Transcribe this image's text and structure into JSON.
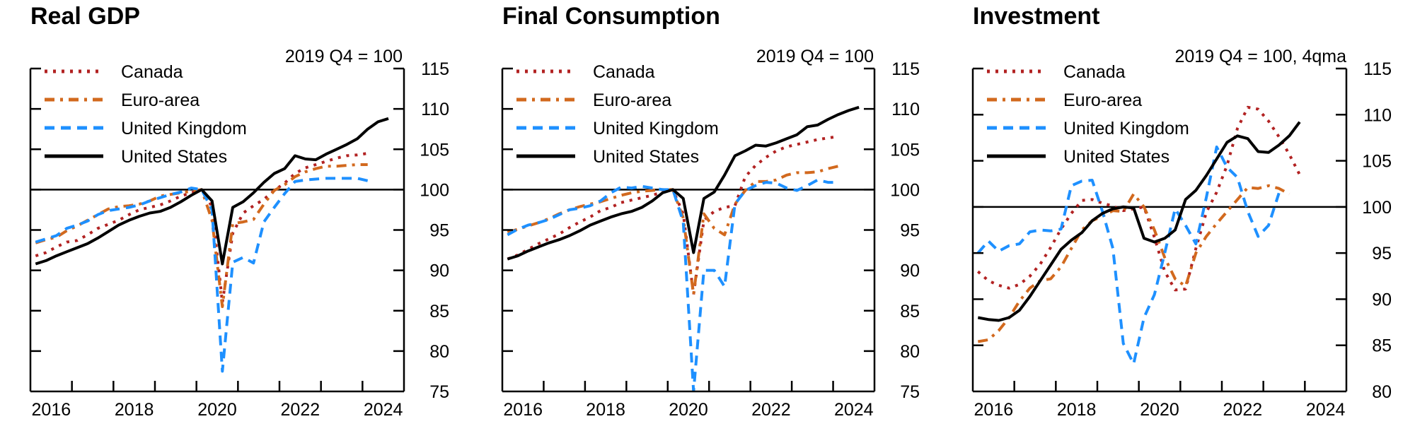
{
  "colors": {
    "Canada": "#b22222",
    "Euro-area": "#d2691e",
    "United Kingdom": "#1e90ff",
    "United States": "#000000"
  },
  "legend": [
    {
      "name": "Canada",
      "style": "dotted"
    },
    {
      "name": "Euro-area",
      "style": "dashdot"
    },
    {
      "name": "United Kingdom",
      "style": "dashed"
    },
    {
      "name": "United States",
      "style": "solid"
    }
  ],
  "chart_data": [
    {
      "type": "line",
      "title": "Real GDP",
      "unit_label": "2019 Q4 = 100",
      "xlabel": "",
      "ylabel": "",
      "x_tick_labels": [
        "2016",
        "2018",
        "2020",
        "2022",
        "2024"
      ],
      "xlim": [
        2016,
        2025
      ],
      "ylim": [
        75,
        115
      ],
      "y_ticks": [
        75,
        80,
        85,
        90,
        95,
        100,
        105,
        110,
        115
      ],
      "reference_line": 100,
      "legend_position": "top-left",
      "x_start": "2016 Q1",
      "frequency": "quarterly",
      "series": [
        {
          "name": "Canada",
          "values": [
            91.8,
            92.2,
            92.9,
            93.5,
            93.7,
            94.4,
            95.2,
            95.7,
            96.2,
            96.9,
            97.5,
            97.8,
            98.1,
            98.6,
            99.2,
            99.6,
            100.0,
            97.9,
            86.0,
            94.6,
            97.1,
            98.0,
            98.8,
            99.9,
            100.8,
            102.0,
            102.7,
            103.1,
            103.5,
            103.9,
            104.2,
            104.3,
            104.5
          ]
        },
        {
          "name": "Euro-area",
          "values": [
            93.4,
            93.8,
            94.1,
            94.9,
            95.5,
            96.2,
            96.9,
            97.6,
            97.9,
            98.0,
            98.2,
            98.6,
            99.2,
            99.4,
            99.6,
            99.8,
            100.0,
            96.2,
            85.5,
            95.8,
            96.0,
            96.3,
            98.2,
            99.9,
            100.6,
            101.6,
            102.2,
            102.6,
            102.9,
            102.9,
            103.0,
            103.1,
            103.1
          ]
        },
        {
          "name": "United Kingdom",
          "values": [
            93.5,
            93.9,
            94.3,
            95.2,
            95.6,
            96.1,
            96.9,
            97.4,
            97.6,
            97.8,
            98.1,
            98.6,
            99.0,
            99.4,
            99.7,
            100.2,
            100.0,
            97.5,
            77.5,
            91.0,
            91.6,
            90.9,
            96.0,
            97.8,
            99.5,
            101.0,
            101.2,
            101.3,
            101.4,
            101.4,
            101.4,
            101.4,
            101.1
          ]
        },
        {
          "name": "United States",
          "values": [
            90.8,
            91.2,
            91.8,
            92.3,
            92.8,
            93.3,
            94.0,
            94.8,
            95.6,
            96.2,
            96.7,
            97.1,
            97.3,
            97.8,
            98.5,
            99.3,
            100.0,
            98.6,
            90.8,
            97.8,
            98.5,
            99.6,
            100.9,
            102.0,
            102.6,
            104.2,
            103.8,
            103.7,
            104.4,
            105.0,
            105.6,
            106.3,
            107.5,
            108.4,
            108.8
          ]
        }
      ]
    },
    {
      "type": "line",
      "title": "Final Consumption",
      "unit_label": "2019 Q4 = 100",
      "xlabel": "",
      "ylabel": "",
      "x_tick_labels": [
        "2016",
        "2018",
        "2020",
        "2022",
        "2024"
      ],
      "xlim": [
        2016,
        2025
      ],
      "ylim": [
        75,
        115
      ],
      "y_ticks": [
        75,
        80,
        85,
        90,
        95,
        100,
        105,
        110,
        115
      ],
      "reference_line": 100,
      "legend_position": "top-left",
      "x_start": "2016 Q1",
      "frequency": "quarterly",
      "series": [
        {
          "name": "Canada",
          "values": [
            91.4,
            91.9,
            92.6,
            93.3,
            93.9,
            94.5,
            95.3,
            96.0,
            96.6,
            97.4,
            97.8,
            98.4,
            98.7,
            99.0,
            99.3,
            99.7,
            100.0,
            97.0,
            87.0,
            96.2,
            97.3,
            97.8,
            98.0,
            101.6,
            103.0,
            104.0,
            104.8,
            105.3,
            105.6,
            105.9,
            106.2,
            106.4,
            106.6
          ]
        },
        {
          "name": "Euro-area",
          "values": [
            94.7,
            95.1,
            95.5,
            95.9,
            96.4,
            97.0,
            97.5,
            97.9,
            98.2,
            98.5,
            98.9,
            99.3,
            99.6,
            99.8,
            99.9,
            100.0,
            100.0,
            96.5,
            87.0,
            97.0,
            95.2,
            94.4,
            98.2,
            99.9,
            101.0,
            101.0,
            101.2,
            101.8,
            102.1,
            102.1,
            102.2,
            102.6,
            102.9
          ]
        },
        {
          "name": "United Kingdom",
          "values": [
            94.4,
            95.1,
            95.6,
            95.9,
            96.3,
            96.9,
            97.5,
            97.7,
            98.0,
            98.6,
            99.6,
            100.3,
            100.2,
            100.4,
            100.2,
            100.0,
            100.0,
            96.0,
            75.0,
            90.0,
            90.0,
            88.0,
            98.2,
            99.9,
            100.5,
            100.9,
            100.8,
            100.2,
            99.9,
            100.5,
            101.2,
            100.9,
            100.9
          ]
        },
        {
          "name": "United States",
          "values": [
            91.4,
            91.8,
            92.4,
            92.9,
            93.4,
            93.8,
            94.3,
            94.9,
            95.6,
            96.1,
            96.6,
            97.0,
            97.3,
            97.8,
            98.6,
            99.6,
            100.0,
            98.9,
            92.2,
            98.9,
            99.7,
            101.8,
            104.2,
            104.8,
            105.5,
            105.4,
            105.8,
            106.3,
            106.8,
            107.8,
            108.0,
            108.7,
            109.3,
            109.8,
            110.2
          ]
        }
      ]
    },
    {
      "type": "line",
      "title": "Investment",
      "unit_label": "2019 Q4 = 100, 4qma",
      "xlabel": "",
      "ylabel": "",
      "x_tick_labels": [
        "2016",
        "2018",
        "2020",
        "2022",
        "2024"
      ],
      "xlim": [
        2016,
        2025
      ],
      "ylim": [
        80,
        115
      ],
      "y_ticks": [
        80,
        85,
        90,
        95,
        100,
        105,
        110,
        115
      ],
      "reference_line": 100,
      "legend_position": "top-left",
      "x_start": "2016 Q1",
      "frequency": "quarterly",
      "series": [
        {
          "name": "Canada",
          "values": [
            93.0,
            92.0,
            91.5,
            91.2,
            91.6,
            92.5,
            93.8,
            95.6,
            97.6,
            99.3,
            100.7,
            100.8,
            100.4,
            100.1,
            99.6,
            99.8,
            100.0,
            96.7,
            93.0,
            91.0,
            91.1,
            95.5,
            99.4,
            101.6,
            104.5,
            108.5,
            110.8,
            110.6,
            109.3,
            107.6,
            105.7,
            103.5
          ]
        },
        {
          "name": "Euro-area",
          "values": [
            85.4,
            85.6,
            86.6,
            88.0,
            89.8,
            91.2,
            92.0,
            92.2,
            93.5,
            95.5,
            97.5,
            98.5,
            99.0,
            99.6,
            99.5,
            101.4,
            100.0,
            97.5,
            94.5,
            92.2,
            91.4,
            95.0,
            96.8,
            98.2,
            99.5,
            100.8,
            102.1,
            102.0,
            102.3,
            102.0,
            101.4
          ]
        },
        {
          "name": "United Kingdom",
          "values": [
            95.0,
            96.3,
            95.2,
            95.8,
            96.0,
            97.3,
            97.5,
            97.4,
            97.6,
            102.3,
            102.8,
            102.9,
            99.5,
            95.5,
            85.2,
            83.0,
            88.0,
            90.5,
            95.0,
            99.8,
            98.0,
            96.0,
            101.0,
            106.5,
            104.3,
            103.2,
            99.5,
            96.8,
            98.0,
            101.5
          ]
        },
        {
          "name": "United States",
          "values": [
            88.0,
            87.8,
            87.7,
            88.0,
            88.8,
            90.3,
            92.0,
            93.7,
            95.4,
            96.4,
            97.2,
            98.5,
            99.3,
            99.8,
            100.0,
            99.9,
            96.6,
            96.2,
            96.6,
            97.5,
            100.8,
            101.8,
            103.4,
            105.2,
            107.0,
            107.7,
            107.4,
            106.0,
            105.9,
            106.7,
            107.7,
            109.2
          ]
        }
      ]
    }
  ]
}
